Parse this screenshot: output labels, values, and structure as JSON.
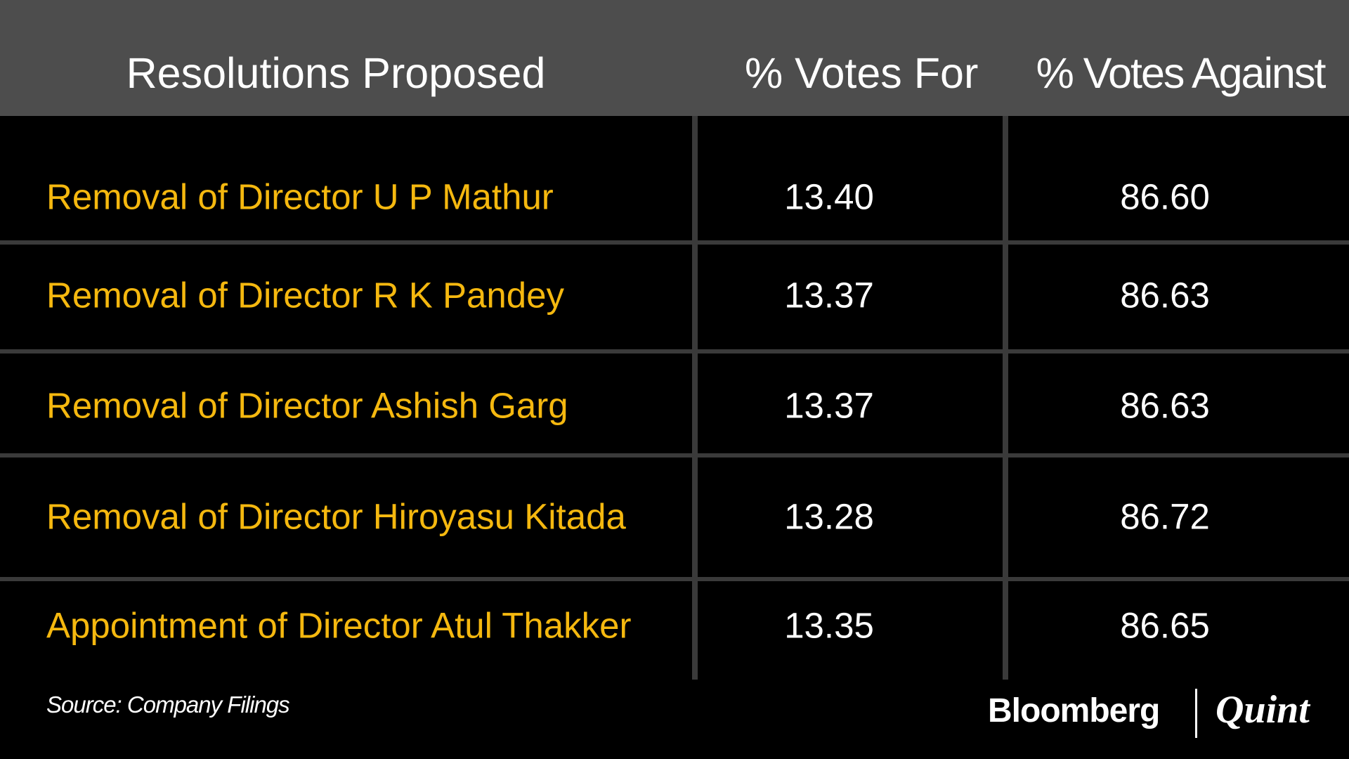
{
  "table": {
    "header": [
      "Resolutions Proposed",
      "% Votes For",
      "% Votes Against"
    ],
    "rows": [
      [
        "Removal of Director U P Mathur",
        "13.40",
        "86.60"
      ],
      [
        "Removal of Director R K Pandey",
        "13.37",
        "86.63"
      ],
      [
        "Removal of Director Ashish Garg",
        "13.37",
        "86.63"
      ],
      [
        "Removal of Director Hiroyasu Kitada",
        "13.28",
        "86.72"
      ],
      [
        "Appointment of Director Atul Thakker",
        "13.35",
        "86.65"
      ]
    ]
  },
  "footer": {
    "source": "Source: Company Filings",
    "brand": "Bloomberg",
    "brand_second": "Quint"
  }
}
